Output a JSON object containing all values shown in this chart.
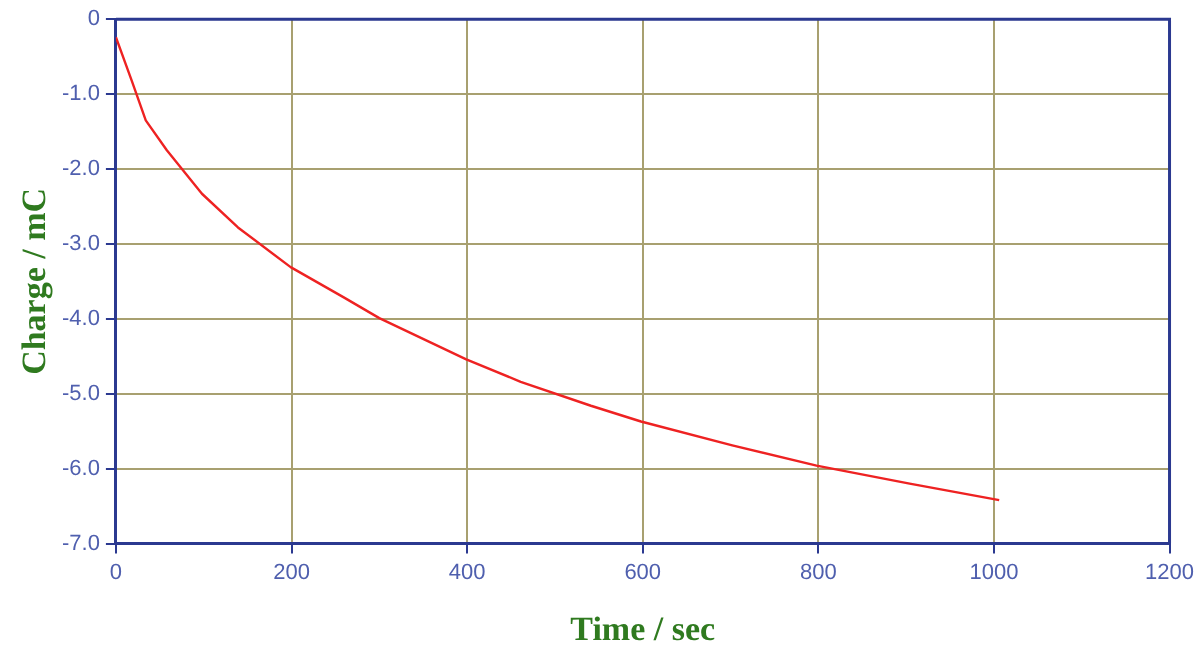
{
  "chart_data": {
    "type": "line",
    "xlabel": "Time / sec",
    "ylabel": "Charge / mC",
    "x": [
      0,
      18,
      34,
      58,
      98,
      139,
      199,
      259,
      300,
      399,
      461,
      541,
      598,
      702,
      798,
      904,
      1006
    ],
    "series": [
      {
        "color": "#ee2222",
        "values": [
          -0.24,
          -0.82,
          -1.35,
          -1.75,
          -2.33,
          -2.78,
          -3.31,
          -3.71,
          -3.99,
          -4.54,
          -4.84,
          -5.16,
          -5.37,
          -5.69,
          -5.96,
          -6.2,
          -6.42
        ]
      }
    ],
    "xlim": [
      0,
      1200
    ],
    "xticks": [
      0,
      200,
      400,
      600,
      800,
      1000,
      1200
    ],
    "ylim": [
      -7,
      0
    ],
    "yticks": [
      {
        "value": -7,
        "label": "-7.0"
      },
      {
        "value": -6,
        "label": "-6.0"
      },
      {
        "value": -5,
        "label": "-5.0"
      },
      {
        "value": -4,
        "label": "-4.0"
      },
      {
        "value": -3,
        "label": "-3.0"
      },
      {
        "value": -2,
        "label": "-2.0"
      },
      {
        "value": -1,
        "label": "-1.0"
      },
      {
        "value": 0,
        "label": "0"
      }
    ],
    "grid": true,
    "legend": false,
    "marker": "none",
    "line_style": "solid"
  }
}
